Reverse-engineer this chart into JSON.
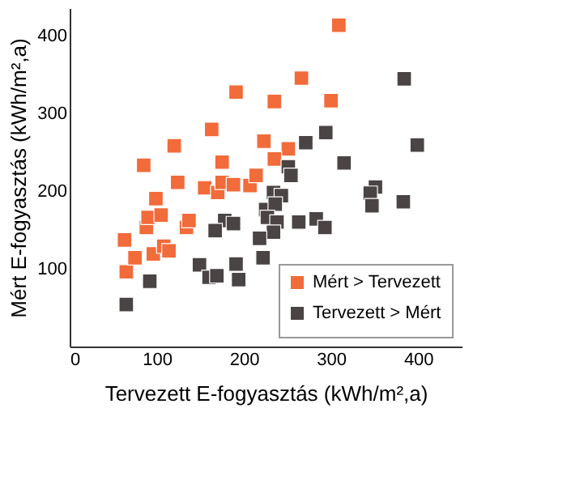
{
  "chart_data": {
    "type": "scatter",
    "xlabel": "Tervezett E-fogyasztás (kWh/m²,a)",
    "ylabel": "Mért E-fogyasztás (kWh/m²,a)",
    "xlim": [
      0,
      450
    ],
    "ylim": [
      0,
      435
    ],
    "xticks": [
      0,
      100,
      200,
      300,
      400
    ],
    "yticks": [
      100,
      200,
      300,
      400
    ],
    "marker": "square",
    "grid": false,
    "legend": "bottom right",
    "series": [
      {
        "name": "Mért > Tervezett",
        "color": "#f26b3a",
        "x": [
          63,
          65,
          75,
          88,
          90,
          99,
          105,
          96,
          108,
          114,
          134,
          137,
          124,
          155,
          170,
          175,
          188,
          207,
          309,
          266,
          191,
          235,
          300,
          163,
          120,
          223,
          251,
          85,
          175,
          235,
          214
        ],
        "values": [
          137,
          96,
          114,
          153,
          166,
          190,
          169,
          119,
          129,
          123,
          153,
          162,
          211,
          204,
          198,
          211,
          208,
          207,
          413,
          345,
          327,
          315,
          316,
          279,
          258,
          264,
          254,
          233,
          237,
          241,
          220
        ]
      },
      {
        "name": "Tervezett > Mért",
        "color": "#4a4444",
        "x": [
          384,
          399,
          294,
          271,
          315,
          251,
          254,
          234,
          243,
          351,
          345,
          347,
          383,
          225,
          236,
          227,
          238,
          234,
          218,
          222,
          178,
          188,
          167,
          263,
          283,
          293,
          149,
          160,
          169,
          191,
          194,
          92,
          65
        ],
        "values": [
          344,
          259,
          275,
          262,
          236,
          231,
          220,
          198,
          194,
          205,
          197,
          181,
          186,
          176,
          183,
          166,
          160,
          147,
          139,
          114,
          162,
          158,
          149,
          160,
          164,
          153,
          105,
          89,
          91,
          106,
          86,
          84,
          54
        ]
      }
    ]
  }
}
